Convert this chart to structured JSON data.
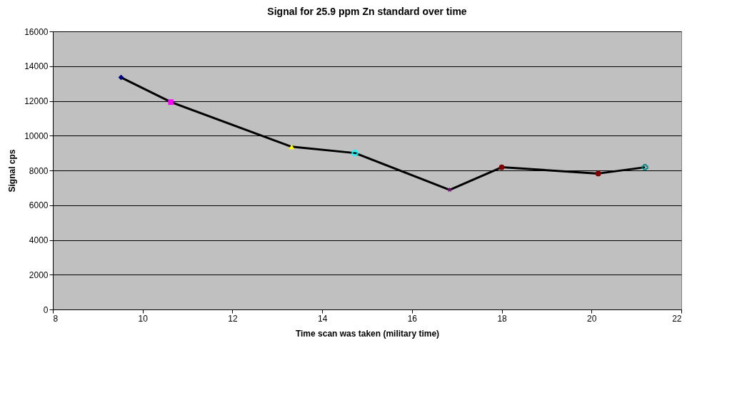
{
  "chart_data": {
    "type": "line",
    "title": "Signal for 25.9 ppm Zn standard over time",
    "xlabel": "Time scan was taken (military time)",
    "ylabel": "Signal cps",
    "xlim": [
      8,
      22
    ],
    "xticks": [
      8,
      10,
      12,
      14,
      16,
      18,
      20,
      22
    ],
    "ylim": [
      0,
      16000
    ],
    "yticks": [
      0,
      2000,
      4000,
      6000,
      8000,
      10000,
      12000,
      14000,
      16000
    ],
    "grid": "y",
    "line_style": "solid",
    "series": [
      {
        "color": "#000000",
        "marker": "none",
        "x": [
          9.52,
          10.63,
          13.32,
          14.73,
          16.84,
          18.0,
          20.15,
          21.19
        ],
        "values": [
          13350,
          11930,
          9360,
          9000,
          6880,
          8180,
          7820,
          8180
        ]
      },
      {
        "type": "scatter",
        "color": "#000080",
        "marker": "diamond",
        "x": [
          9.52
        ],
        "values": [
          13350
        ]
      },
      {
        "type": "scatter",
        "color": "#ff00ff",
        "marker": "square",
        "x": [
          10.63
        ],
        "values": [
          11930
        ]
      },
      {
        "type": "scatter",
        "color": "#ffff00",
        "marker": "triangle",
        "x": [
          13.32
        ],
        "values": [
          9360
        ]
      },
      {
        "type": "scatter",
        "color": "#00ffff",
        "marker": "cross",
        "x": [
          14.73
        ],
        "values": [
          9000
        ]
      },
      {
        "type": "scatter",
        "color": "#800080",
        "marker": "star",
        "x": [
          16.84
        ],
        "values": [
          6880
        ]
      },
      {
        "type": "scatter",
        "color": "#800000",
        "marker": "circle",
        "x": [
          18.0
        ],
        "values": [
          8180
        ]
      },
      {
        "type": "scatter",
        "color": "#800000",
        "marker": "circle",
        "x": [
          20.15
        ],
        "values": [
          7820
        ]
      },
      {
        "type": "scatter",
        "color": "#008080",
        "marker": "cross",
        "x": [
          21.19
        ],
        "values": [
          8180
        ]
      }
    ]
  }
}
